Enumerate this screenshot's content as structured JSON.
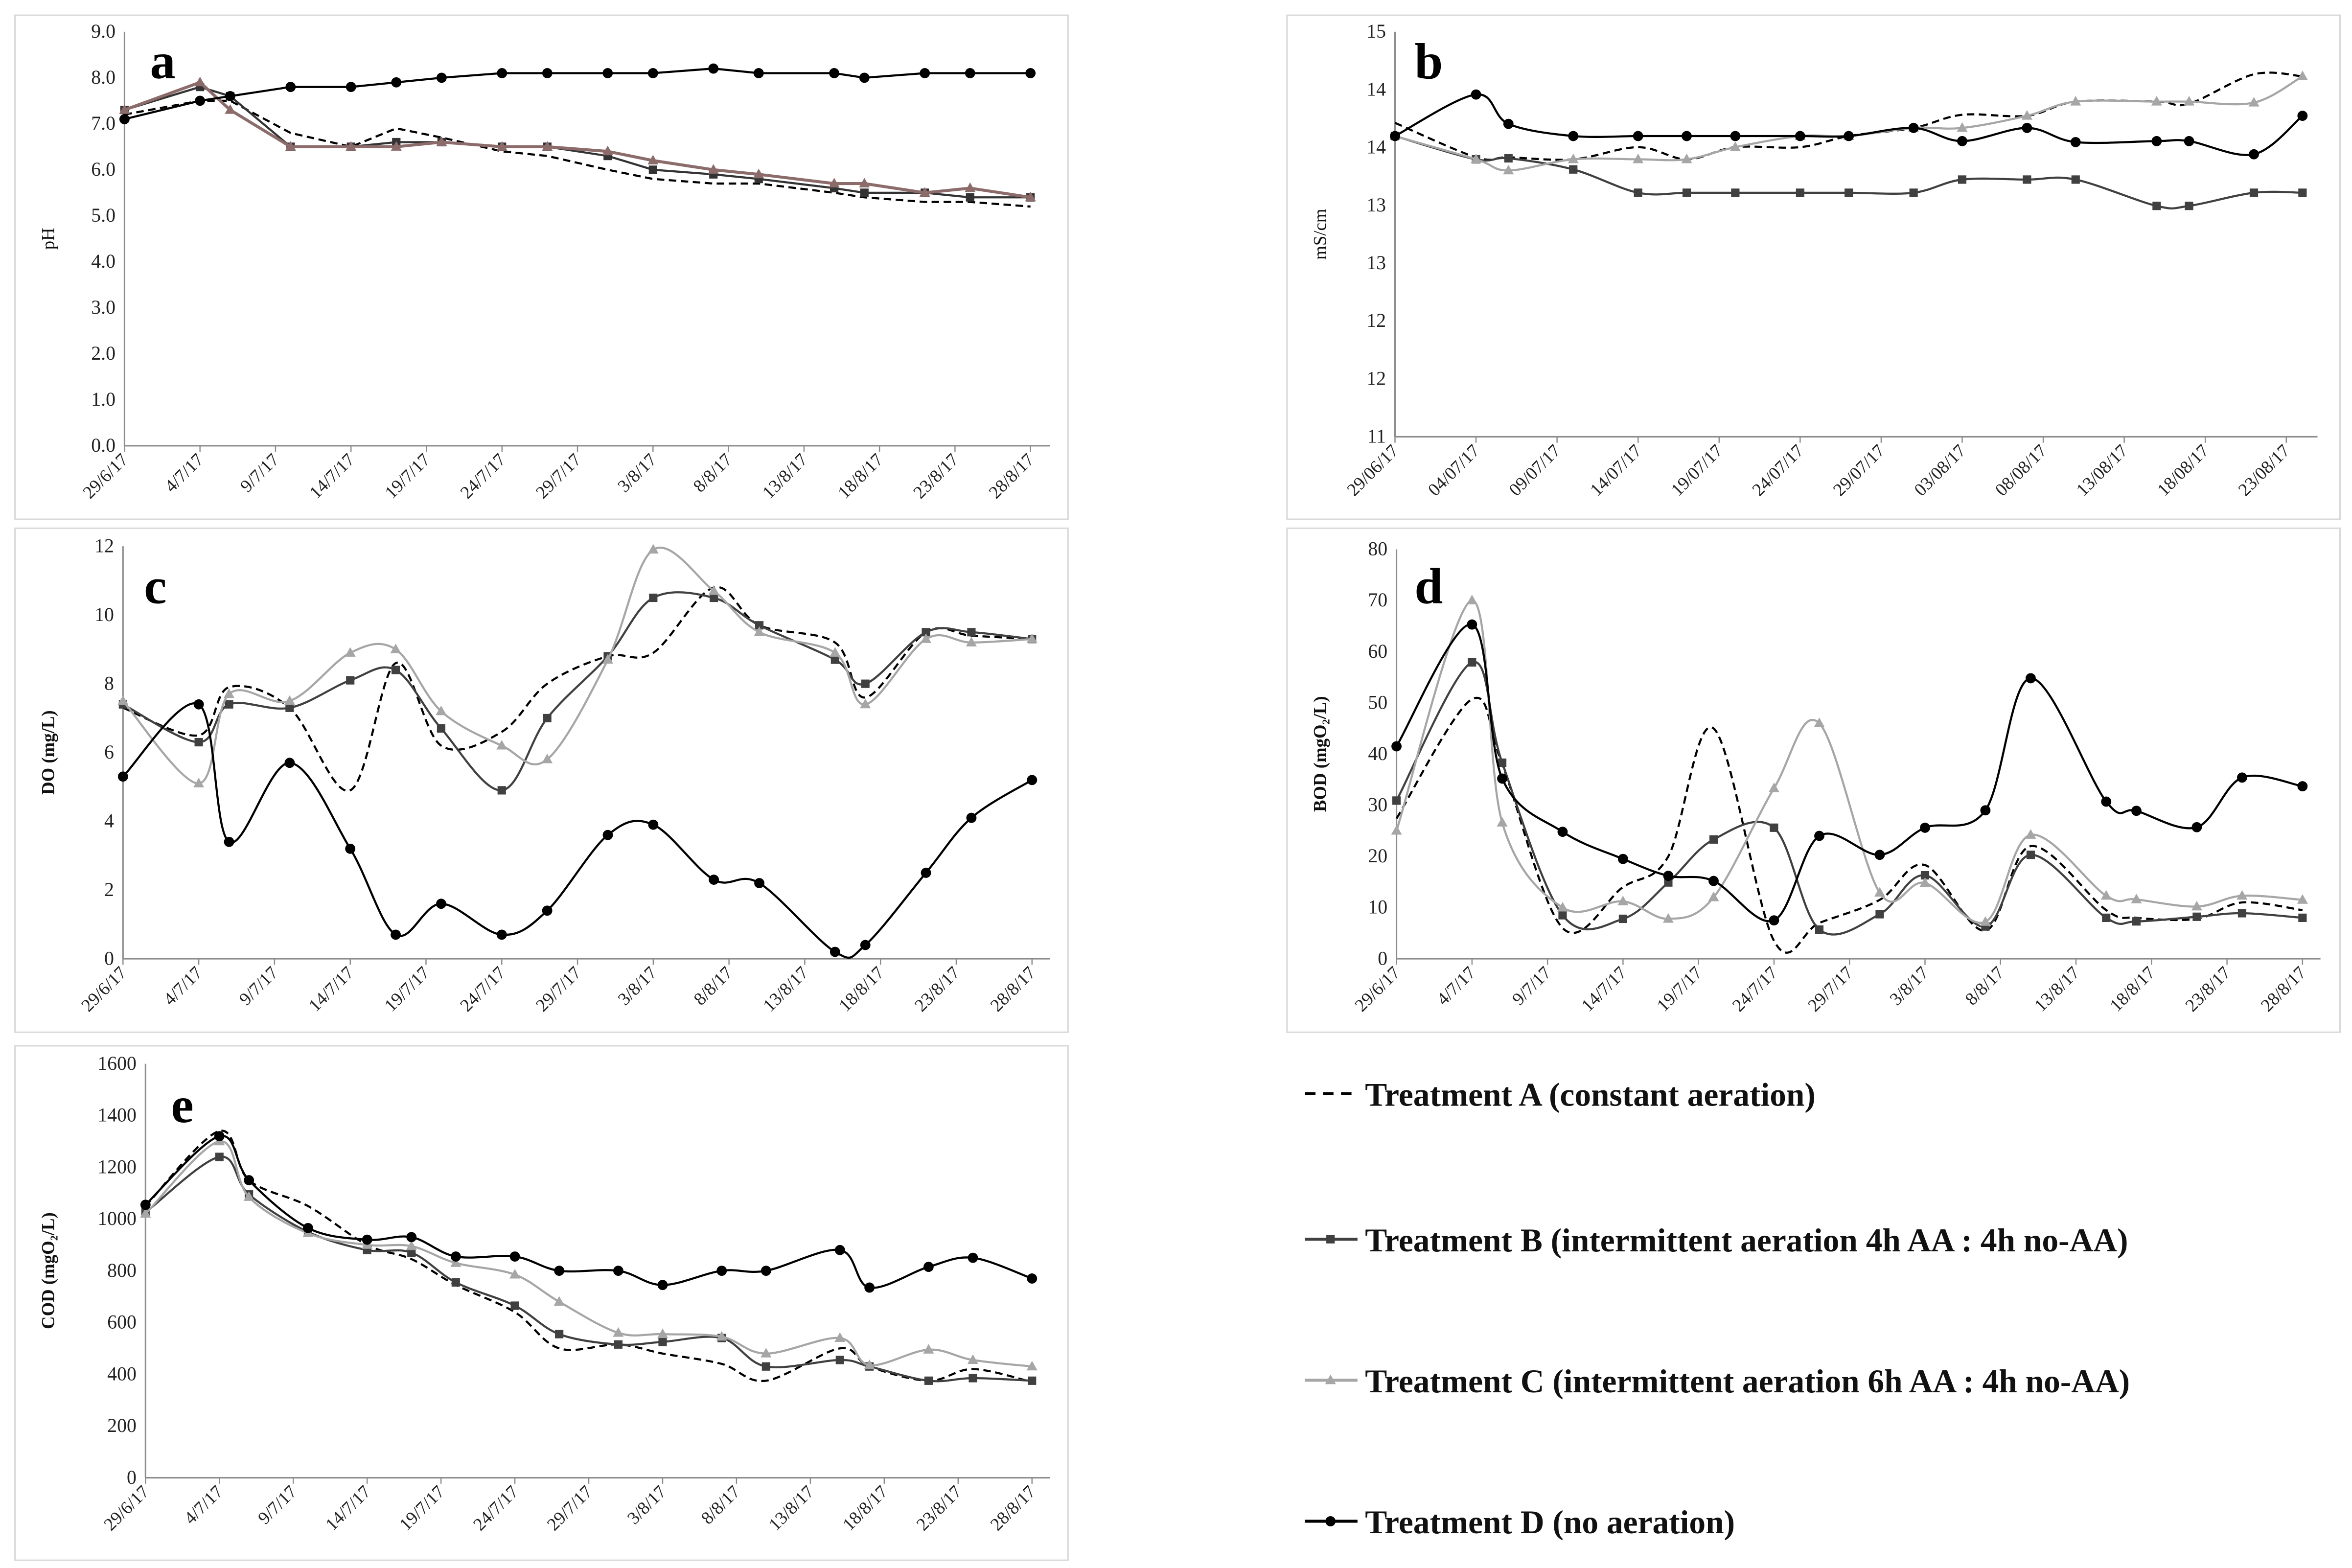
{
  "legend": {
    "items": [
      {
        "series": "A",
        "label": "Treatment A (constant aeration)"
      },
      {
        "series": "B",
        "label": "Treatment B (intermittent aeration 4h AA : 4h no-AA)"
      },
      {
        "series": "C",
        "label": "Treatment C (intermittent aeration 6h AA : 4h no-AA)"
      },
      {
        "series": "D",
        "label": "Treatment D (no aeration)"
      }
    ]
  },
  "series_style": {
    "A": {
      "color": "#000000",
      "dash": true,
      "marker": "none"
    },
    "B": {
      "color": "#404040",
      "dash": false,
      "marker": "square"
    },
    "C": {
      "color": "#a6a6a6",
      "dash": false,
      "marker": "triangle"
    },
    "D": {
      "color": "#000000",
      "dash": false,
      "marker": "circle"
    }
  },
  "chart_data": [
    {
      "type": "line",
      "panel_letter": "a",
      "title": "",
      "ylabel": "pH",
      "xlabel": "",
      "smooth": false,
      "grid": false,
      "ylim": [
        0,
        9
      ],
      "yticks": [
        "0.0",
        "1.0",
        "2.0",
        "3.0",
        "4.0",
        "5.0",
        "6.0",
        "7.0",
        "8.0",
        "9.0"
      ],
      "xlim": [
        "2017-06-29",
        "2017-08-28"
      ],
      "xtick_labels": [
        "29/6/17",
        "4/7/17",
        "9/7/17",
        "14/7/17",
        "19/7/17",
        "24/7/17",
        "29/7/17",
        "3/8/17",
        "8/8/17",
        "13/8/17",
        "18/8/17",
        "23/8/17",
        "28/8/17"
      ],
      "x": [
        "2017-06-29",
        "2017-07-04",
        "2017-07-06",
        "2017-07-10",
        "2017-07-14",
        "2017-07-17",
        "2017-07-20",
        "2017-07-24",
        "2017-07-27",
        "2017-07-31",
        "2017-08-03",
        "2017-08-07",
        "2017-08-10",
        "2017-08-15",
        "2017-08-17",
        "2017-08-21",
        "2017-08-24",
        "2017-08-28"
      ],
      "series_colors": {
        "B": "#333333",
        "C": "#8c6b6b"
      },
      "series": [
        {
          "key": "A",
          "values": [
            7.2,
            7.5,
            7.5,
            6.8,
            6.5,
            6.9,
            6.7,
            6.4,
            6.3,
            6.0,
            5.8,
            5.7,
            5.7,
            5.5,
            5.4,
            5.3,
            5.3,
            5.2
          ]
        },
        {
          "key": "B",
          "values": [
            7.3,
            7.8,
            7.6,
            6.5,
            6.5,
            6.6,
            6.6,
            6.5,
            6.5,
            6.3,
            6.0,
            5.9,
            5.8,
            5.6,
            5.5,
            5.5,
            5.4,
            5.4
          ]
        },
        {
          "key": "C",
          "values": [
            7.3,
            7.9,
            7.3,
            6.5,
            6.5,
            6.5,
            6.6,
            6.5,
            6.5,
            6.4,
            6.2,
            6.0,
            5.9,
            5.7,
            5.7,
            5.5,
            5.6,
            5.4
          ]
        },
        {
          "key": "D",
          "values": [
            7.1,
            7.5,
            7.6,
            7.8,
            7.8,
            7.9,
            8.0,
            8.1,
            8.1,
            8.1,
            8.1,
            8.2,
            8.1,
            8.1,
            8.0,
            8.1,
            8.1,
            8.1
          ]
        }
      ]
    },
    {
      "type": "line",
      "panel_letter": "b",
      "title": "",
      "ylabel": "mS/cm",
      "xlabel": "",
      "smooth": true,
      "grid": false,
      "ylim": [
        11,
        15
      ],
      "yticks": [
        "11",
        "12",
        "12",
        "13",
        "13",
        "14",
        "14",
        "15"
      ],
      "xlim": [
        "2017-06-29",
        "2017-08-24"
      ],
      "xtick_labels": [
        "29/06/17",
        "04/07/17",
        "09/07/17",
        "14/07/17",
        "19/07/17",
        "24/07/17",
        "29/07/17",
        "03/08/17",
        "08/08/17",
        "13/08/17",
        "18/08/17",
        "23/08/17"
      ],
      "x": [
        "2017-06-29",
        "2017-07-04",
        "2017-07-06",
        "2017-07-10",
        "2017-07-14",
        "2017-07-17",
        "2017-07-20",
        "2017-07-24",
        "2017-07-27",
        "2017-07-31",
        "2017-08-03",
        "2017-08-07",
        "2017-08-10",
        "2017-08-15",
        "2017-08-17",
        "2017-08-21",
        "2017-08-24"
      ],
      "series": [
        {
          "key": "A",
          "values": [
            14.1,
            13.76,
            13.76,
            13.74,
            13.86,
            13.74,
            13.86,
            13.86,
            13.97,
            14.05,
            14.18,
            14.17,
            14.31,
            14.31,
            14.29,
            14.58,
            14.56
          ]
        },
        {
          "key": "B",
          "values": [
            13.97,
            13.74,
            13.75,
            13.64,
            13.41,
            13.41,
            13.41,
            13.41,
            13.41,
            13.41,
            13.54,
            13.54,
            13.54,
            13.28,
            13.28,
            13.41,
            13.41
          ]
        },
        {
          "key": "C",
          "values": [
            13.97,
            13.74,
            13.63,
            13.74,
            13.74,
            13.74,
            13.86,
            13.97,
            13.97,
            14.05,
            14.05,
            14.17,
            14.31,
            14.31,
            14.31,
            14.3,
            14.56
          ]
        },
        {
          "key": "D",
          "values": [
            13.97,
            14.38,
            14.09,
            13.97,
            13.97,
            13.97,
            13.97,
            13.97,
            13.97,
            14.05,
            13.92,
            14.05,
            13.91,
            13.92,
            13.92,
            13.79,
            14.17
          ]
        }
      ]
    },
    {
      "type": "line",
      "panel_letter": "c",
      "title": "",
      "ylabel": "DO (mg/L)",
      "xlabel": "",
      "smooth": true,
      "grid": false,
      "ylim": [
        0,
        12
      ],
      "yticks": [
        "0",
        "2",
        "4",
        "6",
        "8",
        "10",
        "12"
      ],
      "xlim": [
        "2017-06-29",
        "2017-08-28"
      ],
      "xtick_labels": [
        "29/6/17",
        "4/7/17",
        "9/7/17",
        "14/7/17",
        "19/7/17",
        "24/7/17",
        "29/7/17",
        "3/8/17",
        "8/8/17",
        "13/8/17",
        "18/8/17",
        "23/8/17",
        "28/8/17"
      ],
      "x": [
        "2017-06-29",
        "2017-07-04",
        "2017-07-06",
        "2017-07-10",
        "2017-07-14",
        "2017-07-17",
        "2017-07-20",
        "2017-07-24",
        "2017-07-27",
        "2017-07-31",
        "2017-08-03",
        "2017-08-07",
        "2017-08-10",
        "2017-08-15",
        "2017-08-17",
        "2017-08-21",
        "2017-08-24",
        "2017-08-28"
      ],
      "series": [
        {
          "key": "A",
          "values": [
            7.3,
            6.5,
            7.9,
            7.3,
            4.9,
            8.6,
            6.2,
            6.6,
            8.0,
            8.8,
            8.9,
            10.8,
            9.7,
            9.2,
            7.6,
            9.5,
            9.4,
            9.3
          ]
        },
        {
          "key": "B",
          "values": [
            7.4,
            6.3,
            7.4,
            7.3,
            8.1,
            8.4,
            6.7,
            4.9,
            7.0,
            8.8,
            10.5,
            10.5,
            9.7,
            8.7,
            8.0,
            9.5,
            9.5,
            9.3
          ]
        },
        {
          "key": "C",
          "values": [
            7.5,
            5.1,
            7.7,
            7.5,
            8.9,
            9.0,
            7.2,
            6.2,
            5.8,
            8.7,
            11.9,
            10.7,
            9.5,
            8.9,
            7.4,
            9.3,
            9.2,
            9.3
          ]
        },
        {
          "key": "D",
          "values": [
            5.3,
            7.4,
            3.4,
            5.7,
            3.2,
            0.7,
            1.6,
            0.7,
            1.4,
            3.6,
            3.9,
            2.3,
            2.2,
            0.2,
            0.4,
            2.5,
            4.1,
            5.2
          ]
        }
      ]
    },
    {
      "type": "line",
      "panel_letter": "d",
      "title": "",
      "ylabel": "BOD (mgO₂/L)",
      "xlabel": "",
      "smooth": true,
      "grid": false,
      "ylim": [
        0,
        80
      ],
      "yticks": [
        "0",
        "10",
        "20",
        "30",
        "40",
        "50",
        "60",
        "70",
        "80"
      ],
      "xlim": [
        "2017-06-29",
        "2017-08-28"
      ],
      "xtick_labels": [
        "29/6/17",
        "4/7/17",
        "9/7/17",
        "14/7/17",
        "19/7/17",
        "24/7/17",
        "29/7/17",
        "3/8/17",
        "8/8/17",
        "13/8/17",
        "18/8/17",
        "23/8/17",
        "28/8/17"
      ],
      "x": [
        "2017-06-29",
        "2017-07-04",
        "2017-07-06",
        "2017-07-10",
        "2017-07-14",
        "2017-07-17",
        "2017-07-20",
        "2017-07-24",
        "2017-07-27",
        "2017-07-31",
        "2017-08-03",
        "2017-08-07",
        "2017-08-10",
        "2017-08-15",
        "2017-08-17",
        "2017-08-21",
        "2017-08-24",
        "2017-08-28"
      ],
      "series": [
        {
          "key": "A",
          "values": [
            27.4,
            50.7,
            38.0,
            6.0,
            14.0,
            20.0,
            45.0,
            3.5,
            7.0,
            11.5,
            18.3,
            5.5,
            22.0,
            9.5,
            8.0,
            7.8,
            11.0,
            9.5
          ]
        },
        {
          "key": "B",
          "values": [
            30.9,
            57.9,
            38.3,
            8.5,
            7.8,
            14.9,
            23.3,
            25.6,
            5.7,
            8.7,
            16.3,
            6.3,
            20.3,
            8.0,
            7.3,
            8.2,
            8.9,
            8.0
          ]
        },
        {
          "key": "C",
          "values": [
            25.0,
            70.0,
            26.6,
            10.0,
            11.2,
            7.8,
            12.0,
            33.3,
            46.0,
            12.9,
            14.8,
            7.2,
            24.2,
            12.3,
            11.6,
            10.2,
            12.3,
            11.5
          ]
        },
        {
          "key": "D",
          "values": [
            41.5,
            65.3,
            35.2,
            24.8,
            19.5,
            16.2,
            15.2,
            7.5,
            24.0,
            20.3,
            25.6,
            29.0,
            54.8,
            30.7,
            28.9,
            25.7,
            35.4,
            33.7
          ]
        }
      ]
    },
    {
      "type": "line",
      "panel_letter": "e",
      "title": "",
      "ylabel": "COD (mgO₂/L)",
      "xlabel": "",
      "smooth": true,
      "grid": false,
      "ylim": [
        0,
        1600
      ],
      "yticks": [
        "0",
        "200",
        "400",
        "600",
        "800",
        "1000",
        "1200",
        "1400",
        "1600"
      ],
      "xlim": [
        "2017-06-29",
        "2017-08-28"
      ],
      "xtick_labels": [
        "29/6/17",
        "4/7/17",
        "9/7/17",
        "14/7/17",
        "19/7/17",
        "24/7/17",
        "29/7/17",
        "3/8/17",
        "8/8/17",
        "13/8/17",
        "18/8/17",
        "23/8/17",
        "28/8/17"
      ],
      "x": [
        "2017-06-29",
        "2017-07-04",
        "2017-07-06",
        "2017-07-10",
        "2017-07-14",
        "2017-07-17",
        "2017-07-20",
        "2017-07-24",
        "2017-07-27",
        "2017-07-31",
        "2017-08-03",
        "2017-08-07",
        "2017-08-10",
        "2017-08-15",
        "2017-08-17",
        "2017-08-21",
        "2017-08-24",
        "2017-08-28"
      ],
      "series": [
        {
          "key": "A",
          "values": [
            1050,
            1340,
            1150,
            1050,
            900,
            845,
            745,
            640,
            500,
            515,
            480,
            440,
            375,
            500,
            430,
            375,
            420,
            370
          ]
        },
        {
          "key": "B",
          "values": [
            1025,
            1240,
            1095,
            950,
            880,
            870,
            755,
            665,
            555,
            515,
            525,
            540,
            430,
            455,
            430,
            375,
            385,
            375
          ]
        },
        {
          "key": "C",
          "values": [
            1020,
            1300,
            1085,
            945,
            900,
            895,
            830,
            785,
            680,
            560,
            555,
            545,
            480,
            540,
            435,
            495,
            455,
            430
          ]
        },
        {
          "key": "D",
          "values": [
            1055,
            1320,
            1150,
            965,
            920,
            930,
            855,
            855,
            800,
            800,
            745,
            800,
            800,
            880,
            735,
            815,
            850,
            770
          ]
        }
      ]
    }
  ]
}
